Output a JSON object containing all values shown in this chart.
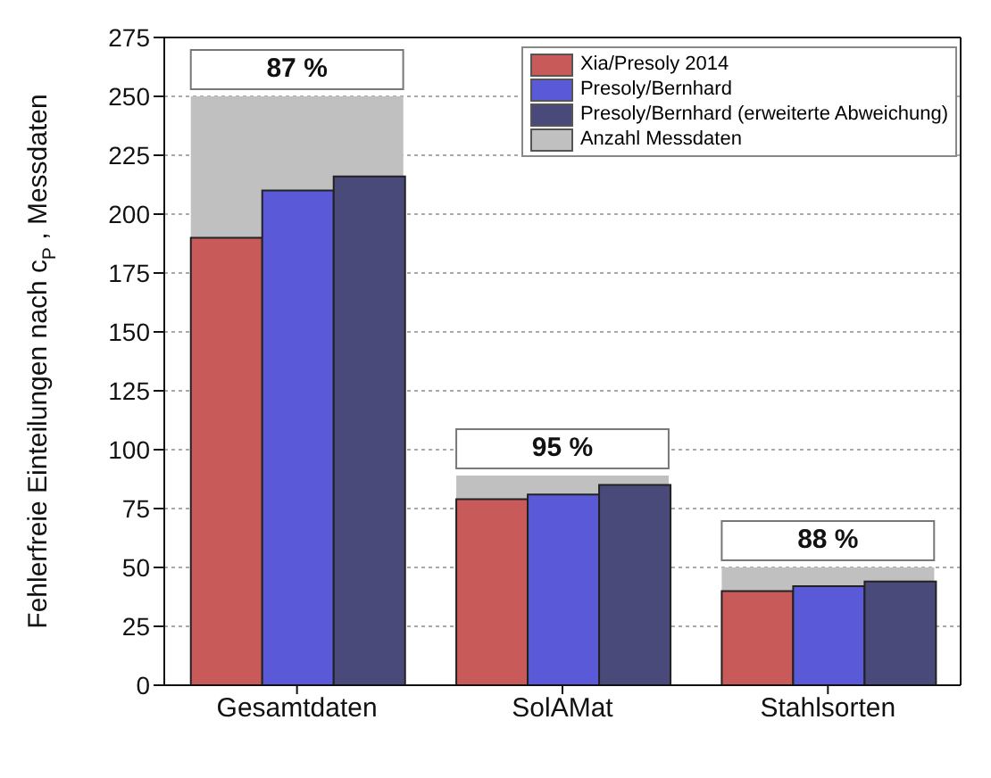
{
  "chart_data": {
    "type": "bar",
    "ylabel": "Fehlerfreie Einteilungen nach c$_{P}$, Messdaten",
    "categories": [
      "Gesamtdaten",
      "SolAMat",
      "Stahlsorten"
    ],
    "series": [
      {
        "name": "Xia/Presoly 2014",
        "color": "#c85a5a",
        "values": [
          190,
          79,
          40
        ]
      },
      {
        "name": "Presoly/Bernhard",
        "color": "#5a5ad8",
        "values": [
          210,
          81,
          42
        ]
      },
      {
        "name": "Presoly/Bernhard (erweiterte Abweichung)",
        "color": "#4a4a7a",
        "values": [
          216,
          85,
          44
        ]
      },
      {
        "name": "Anzahl Messdaten",
        "color": "#c0c0c0",
        "values": [
          250,
          89,
          50
        ]
      }
    ],
    "ylim": [
      0,
      275
    ],
    "yticks": [
      0,
      25,
      50,
      75,
      100,
      125,
      150,
      175,
      200,
      225,
      250,
      275
    ],
    "grid": "y",
    "legend": "top right",
    "annotations": [
      {
        "text": "87 %",
        "x": "Gesamtdaten",
        "y": 250
      },
      {
        "text": "95 %",
        "x": "SolAMat",
        "y": 89
      },
      {
        "text": "88 %",
        "x": "Stahlsorten",
        "y": 50
      }
    ]
  }
}
